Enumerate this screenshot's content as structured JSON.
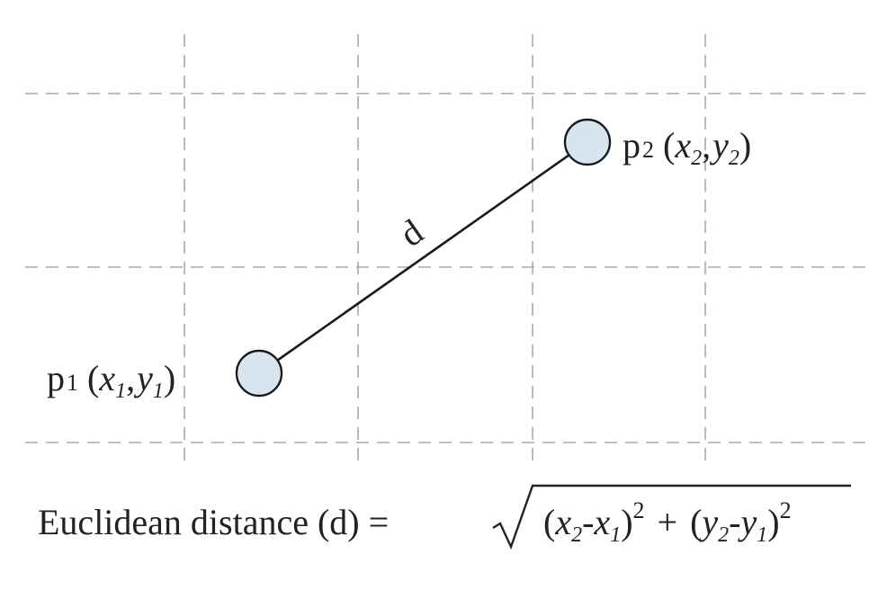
{
  "points": {
    "p1": {
      "name": "p",
      "index": "1",
      "open_paren": "(",
      "x_var": "x",
      "x_sub": "1",
      "comma": ",",
      "y_var": "y",
      "y_sub": "1",
      "close_paren": ")"
    },
    "p2": {
      "name": "p",
      "index": "2",
      "open_paren": "(",
      "x_var": "x",
      "x_sub": "2",
      "comma": ",",
      "y_var": "y",
      "y_sub": "2",
      "close_paren": ")"
    }
  },
  "distance_label": "d",
  "formula": {
    "lhs": "Euclidean distance (d) =",
    "term1_open": "(",
    "term1_x2": "x",
    "term1_x2_sub": "2",
    "minus1": "-",
    "term1_x1": "x",
    "term1_x1_sub": "1",
    "term1_close": ")",
    "term1_exp": "2",
    "plus": "+",
    "term2_open": "(",
    "term2_y2": "y",
    "term2_y2_sub": "2",
    "minus2": "-",
    "term2_y1": "y",
    "term2_y1_sub": "1",
    "term2_close": ")",
    "term2_exp": "2"
  },
  "colors": {
    "point_fill": "#d6e6f1",
    "grid": "#a9a9a9",
    "line": "#1a1a1a"
  }
}
